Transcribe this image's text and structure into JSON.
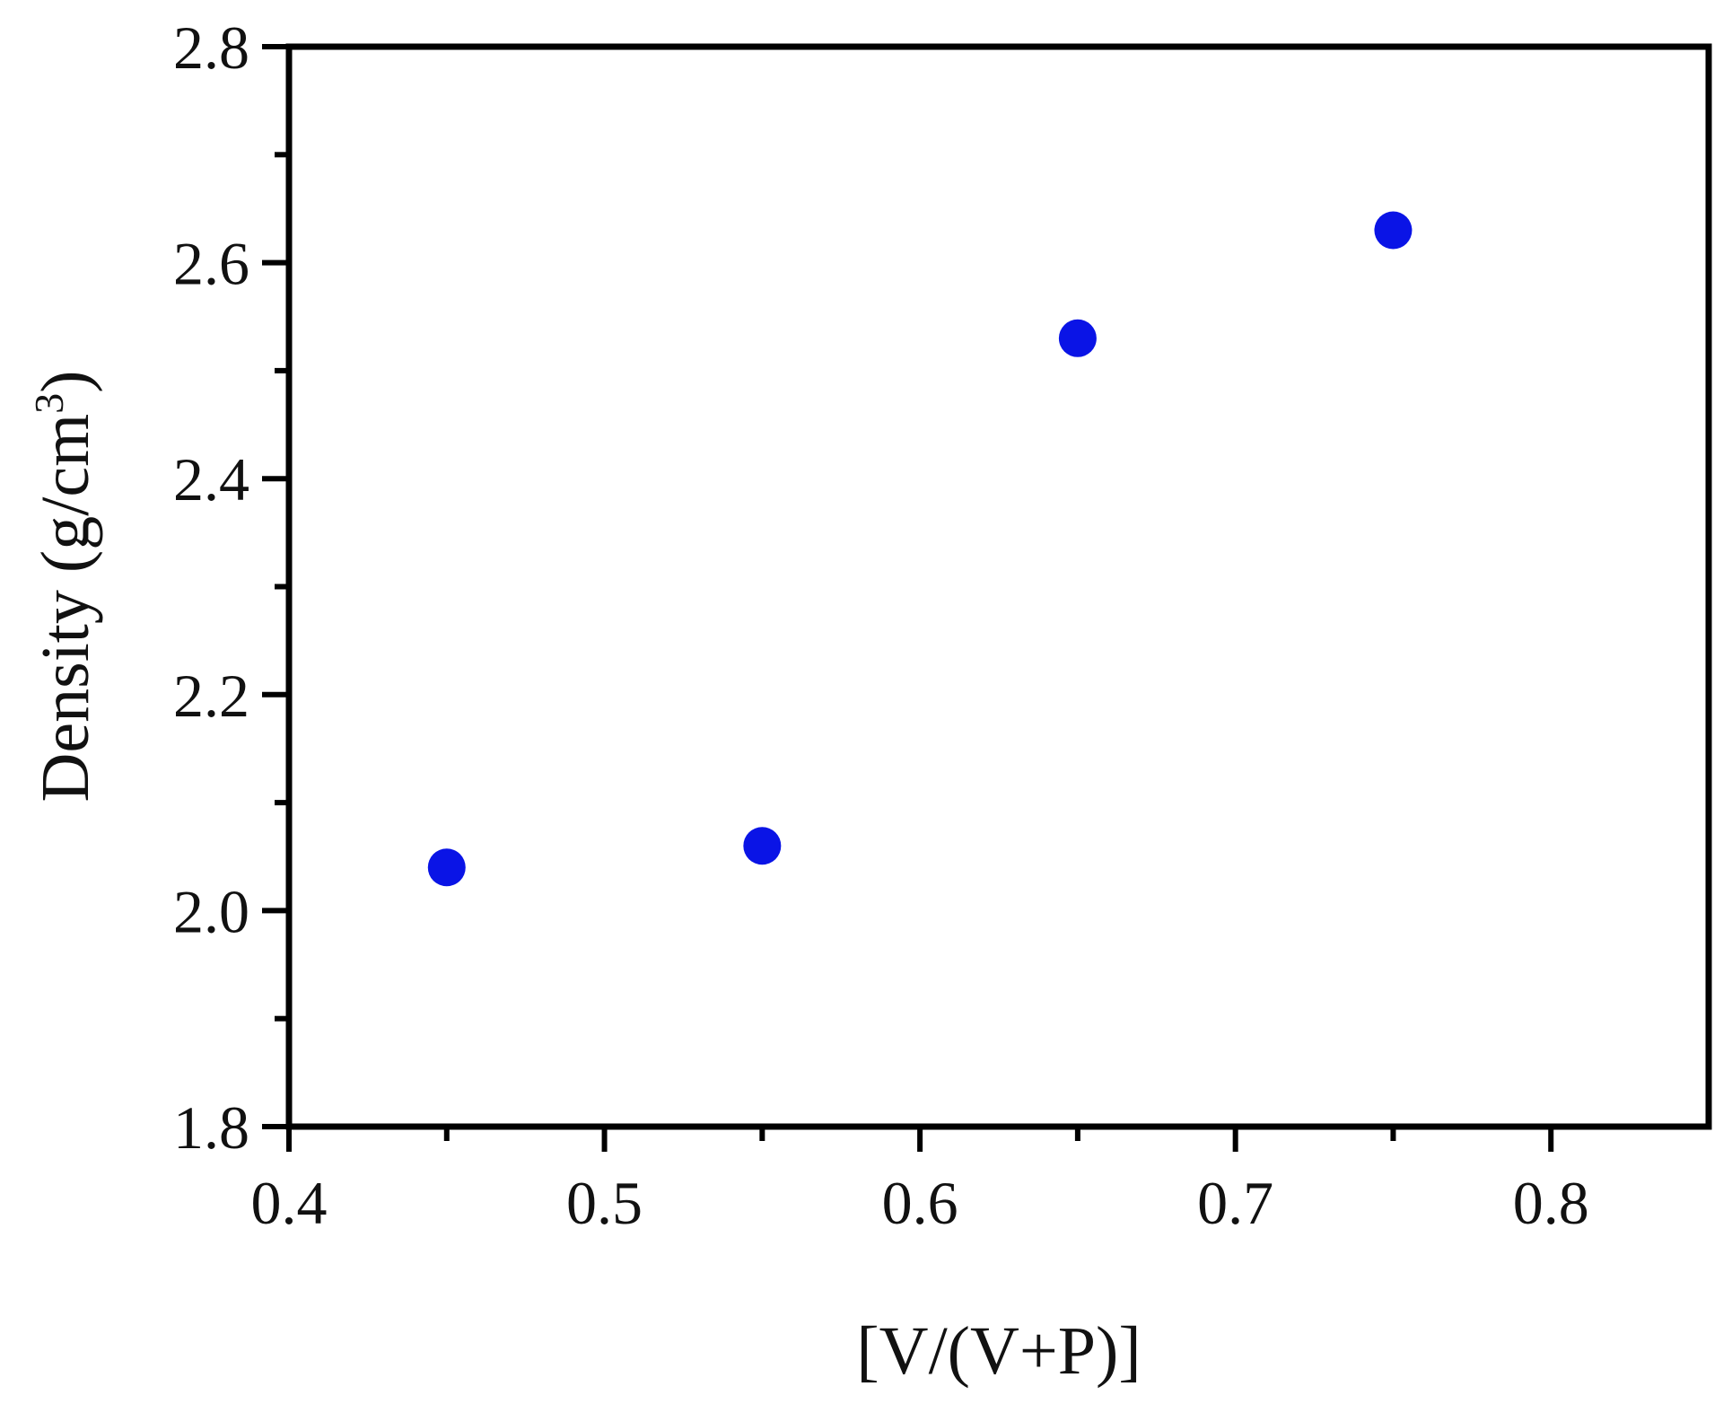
{
  "chart_data": {
    "type": "scatter",
    "title": "",
    "xlabel": "[V/(V+P)]",
    "ylabel": {
      "base": "Density (g/cm",
      "sup": "3",
      "close": ")"
    },
    "xlim": [
      0.4,
      0.85
    ],
    "ylim": [
      1.8,
      2.8
    ],
    "x_ticks": [
      "0.4",
      "0.5",
      "0.6",
      "0.7",
      "0.8"
    ],
    "y_ticks": [
      "1.8",
      "2.0",
      "2.2",
      "2.4",
      "2.6",
      "2.8"
    ],
    "grid": false,
    "legend": "none",
    "marker_color": "#0a14e6",
    "points": [
      {
        "x": 0.45,
        "y": 2.04
      },
      {
        "x": 0.55,
        "y": 2.06
      },
      {
        "x": 0.65,
        "y": 2.53
      },
      {
        "x": 0.75,
        "y": 2.63
      }
    ]
  }
}
